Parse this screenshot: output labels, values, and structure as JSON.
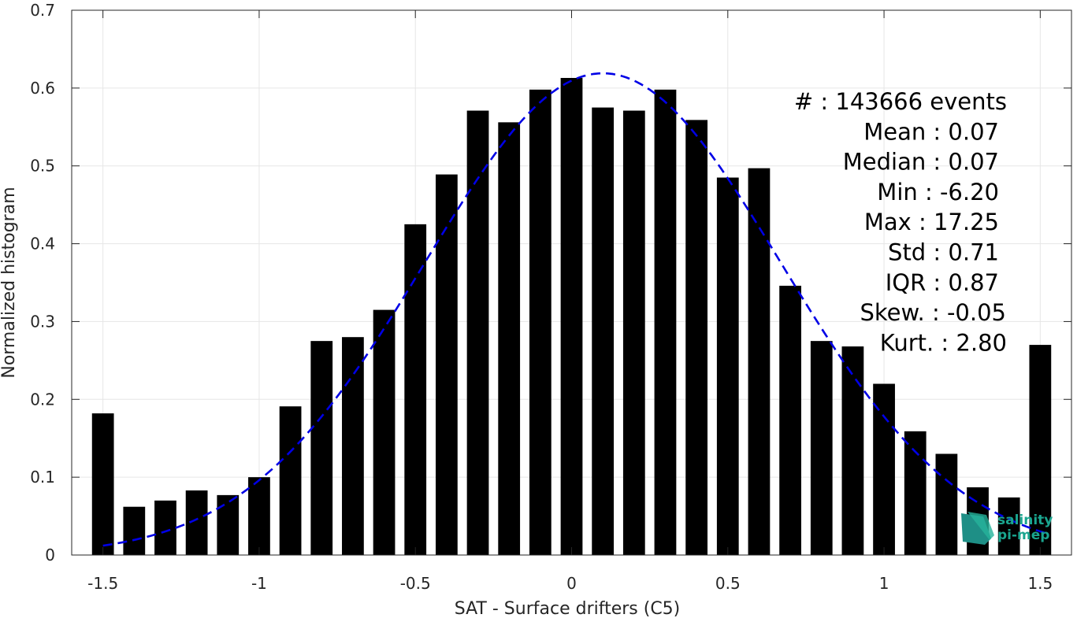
{
  "chart_data": {
    "type": "bar",
    "xlabel": "SAT - Surface drifters (C5)",
    "ylabel": "Normalized histogram",
    "xlim": [
      -1.6,
      1.6
    ],
    "ylim": [
      0,
      0.7
    ],
    "xticks": [
      -1.5,
      -1,
      -0.5,
      0,
      0.5,
      1,
      1.5
    ],
    "xtick_labels": [
      "-1.5",
      "-1",
      "-0.5",
      "0",
      "0.5",
      "1",
      "1.5"
    ],
    "yticks": [
      0,
      0.1,
      0.2,
      0.3,
      0.4,
      0.5,
      0.6,
      0.7
    ],
    "ytick_labels": [
      "0",
      "0.1",
      "0.2",
      "0.3",
      "0.4",
      "0.5",
      "0.6",
      "0.7"
    ],
    "grid": true,
    "bar_color": "#000000",
    "curve_color": "#0000e6",
    "bars": {
      "x": [
        -1.5,
        -1.4,
        -1.3,
        -1.2,
        -1.1,
        -1.0,
        -0.9,
        -0.8,
        -0.7,
        -0.6,
        -0.5,
        -0.4,
        -0.3,
        -0.2,
        -0.1,
        0.0,
        0.1,
        0.2,
        0.3,
        0.4,
        0.5,
        0.6,
        0.7,
        0.8,
        0.9,
        1.0,
        1.1,
        1.2,
        1.3,
        1.4,
        1.5
      ],
      "values": [
        0.182,
        0.062,
        0.07,
        0.083,
        0.077,
        0.1,
        0.191,
        0.275,
        0.28,
        0.315,
        0.425,
        0.489,
        0.571,
        0.556,
        0.598,
        0.613,
        0.575,
        0.571,
        0.598,
        0.559,
        0.485,
        0.497,
        0.346,
        0.275,
        0.268,
        0.22,
        0.159,
        0.13,
        0.087,
        0.074,
        0.27
      ]
    },
    "fit_curve": {
      "name": "",
      "style": "dashed",
      "mean": 0.1,
      "std": 0.57,
      "peak": 0.619,
      "x_range": [
        -1.5,
        1.52
      ]
    },
    "annotations": [
      "#  : 143666 events",
      "Mean : 0.07",
      "Median : 0.07",
      "Min : -6.20",
      "Max : 17.25",
      "Std : 0.71",
      "IQR : 0.87",
      "Skew. : -0.05",
      "Kurt. : 2.80"
    ]
  },
  "logo": {
    "line1": "salinity",
    "line2": "pi-mep",
    "color": "#1aa58f"
  }
}
